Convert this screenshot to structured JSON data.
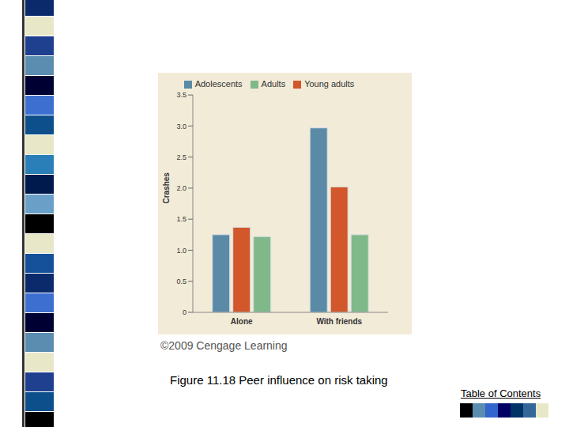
{
  "chart_data": {
    "type": "bar",
    "title": "Figure 11.18 Peer influence on risk taking",
    "annotations": [
      "©2009 Cengage Learning"
    ],
    "ylabel": "Crashes",
    "categories": [
      "Alone",
      "With friends"
    ],
    "series": [
      {
        "name": "Adolescents",
        "color": "#5b8aa6",
        "values": [
          1.25,
          2.97
        ]
      },
      {
        "name": "Young adults",
        "color": "#d2572a",
        "values": [
          1.37,
          2.02
        ]
      },
      {
        "name": "Adults",
        "color": "#7fb98a",
        "values": [
          1.22,
          1.25
        ]
      }
    ],
    "ylim": [
      0,
      3.5
    ],
    "yticks": [
      0,
      0.5,
      {
        "value": 1,
        "label": "1.0"
      },
      {
        "value": 1.5,
        "label": "1.5"
      },
      {
        "value": 2,
        "label": "2.0"
      },
      {
        "value": 2.5,
        "label": "2.5"
      },
      {
        "value": 3,
        "label": "3.0"
      },
      {
        "value": 3.5,
        "label": "3.5"
      }
    ],
    "grid": false,
    "legend": "top"
  },
  "slide": {
    "link": "Table of Contents"
  }
}
